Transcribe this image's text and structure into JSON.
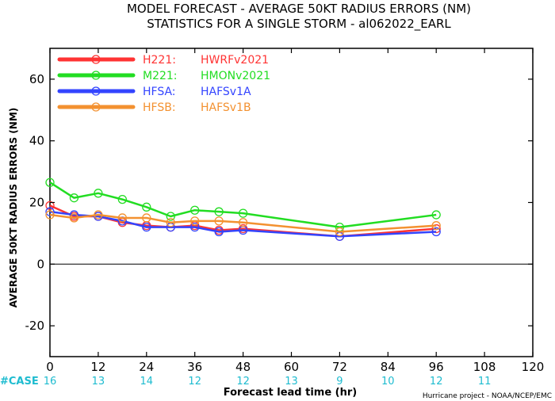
{
  "title_line1": "MODEL FORECAST - AVERAGE 50KT RADIUS ERRORS (NM)",
  "title_line2": "STATISTICS FOR A SINGLE STORM - al062022_EARL",
  "credit": "Hurricane project - NOAA/NCEP/EMC",
  "case_label": "#CASE",
  "case_color": "#1fbcd0",
  "chart_data": {
    "type": "line",
    "xlabel": "Forecast lead time (hr)",
    "ylabel": "AVERAGE 50KT RADIUS ERRORS (NM)",
    "xlim": [
      0,
      120
    ],
    "ylim": [
      -30,
      70
    ],
    "xticks": [
      0,
      12,
      24,
      36,
      48,
      60,
      72,
      84,
      96,
      108,
      120
    ],
    "yticks": [
      -20,
      0,
      20,
      40,
      60
    ],
    "zero_line": true,
    "legend_position": "top-left",
    "case_counts": [
      {
        "x": 0,
        "n": "16"
      },
      {
        "x": 12,
        "n": "13"
      },
      {
        "x": 24,
        "n": "14"
      },
      {
        "x": 36,
        "n": "12"
      },
      {
        "x": 48,
        "n": "12"
      },
      {
        "x": 60,
        "n": "13"
      },
      {
        "x": 72,
        "n": "9"
      },
      {
        "x": 84,
        "n": "10"
      },
      {
        "x": 96,
        "n": "12"
      },
      {
        "x": 108,
        "n": "11"
      }
    ],
    "series": [
      {
        "id": "h221",
        "code": "H221:",
        "label": "HWRFv2021",
        "color": "#ff3333",
        "x": [
          0,
          6,
          12,
          18,
          24,
          30,
          36,
          42,
          48,
          72,
          96
        ],
        "y": [
          19.0,
          15.5,
          15.5,
          13.5,
          12.5,
          12.0,
          12.5,
          11.0,
          11.5,
          9.0,
          11.5
        ]
      },
      {
        "id": "m221",
        "code": "M221:",
        "label": "HMONv2021",
        "color": "#22dd22",
        "x": [
          0,
          6,
          12,
          18,
          24,
          30,
          36,
          42,
          48,
          72,
          96
        ],
        "y": [
          26.5,
          21.5,
          23.0,
          21.0,
          18.5,
          15.5,
          17.5,
          17.0,
          16.5,
          12.0,
          16.0
        ]
      },
      {
        "id": "hfsa",
        "code": "HFSA:",
        "label": "HAFSv1A",
        "color": "#3344ff",
        "x": [
          0,
          6,
          12,
          18,
          24,
          30,
          36,
          42,
          48,
          72,
          96
        ],
        "y": [
          17.0,
          16.0,
          15.5,
          14.0,
          12.0,
          12.0,
          12.0,
          10.5,
          11.0,
          9.0,
          10.5
        ]
      },
      {
        "id": "hfsb",
        "code": "HFSB:",
        "label": "HAFSv1B",
        "color": "#f39130",
        "x": [
          0,
          6,
          12,
          18,
          24,
          30,
          36,
          42,
          48,
          72,
          96
        ],
        "y": [
          16.0,
          15.0,
          16.0,
          15.0,
          15.0,
          13.5,
          14.0,
          14.0,
          13.5,
          10.5,
          12.5
        ]
      }
    ]
  }
}
